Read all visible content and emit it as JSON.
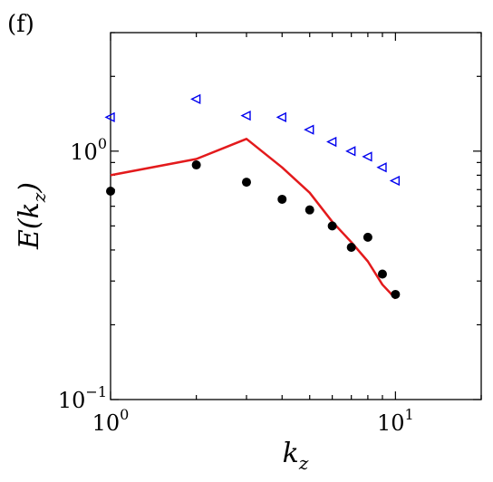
{
  "panel_label": "(f)",
  "chart_data": {
    "type": "scatter",
    "xscale": "log",
    "yscale": "log",
    "xlim": [
      1,
      20
    ],
    "ylim": [
      0.1,
      3
    ],
    "xlabel": "k_z",
    "ylabel": "E(k_z)",
    "x_ticks": [
      {
        "value": 1,
        "base": "10",
        "exp": "0"
      },
      {
        "value": 10,
        "base": "10",
        "exp": "1"
      }
    ],
    "y_ticks": [
      {
        "value": 0.1,
        "base": "10",
        "exp": "−1"
      },
      {
        "value": 1,
        "base": "10",
        "exp": "0"
      }
    ],
    "series": [
      {
        "style": "line",
        "color": "#e31a1c",
        "x": [
          1,
          2,
          3,
          4,
          5,
          6,
          7,
          8,
          9,
          10
        ],
        "y": [
          0.8,
          0.93,
          1.12,
          0.86,
          0.68,
          0.52,
          0.43,
          0.36,
          0.29,
          0.255
        ]
      },
      {
        "style": "filled-circle",
        "color": "#000000",
        "x": [
          1,
          2,
          3,
          4,
          5,
          6,
          7,
          8,
          9,
          10
        ],
        "y": [
          0.69,
          0.88,
          0.75,
          0.64,
          0.58,
          0.5,
          0.41,
          0.45,
          0.32,
          0.265
        ]
      },
      {
        "style": "open-triangle-left",
        "color": "#0000ee",
        "x": [
          1,
          2,
          3,
          4,
          5,
          6,
          7,
          8,
          9,
          10
        ],
        "y": [
          1.37,
          1.62,
          1.39,
          1.37,
          1.22,
          1.09,
          1.0,
          0.95,
          0.86,
          0.76
        ]
      }
    ]
  }
}
